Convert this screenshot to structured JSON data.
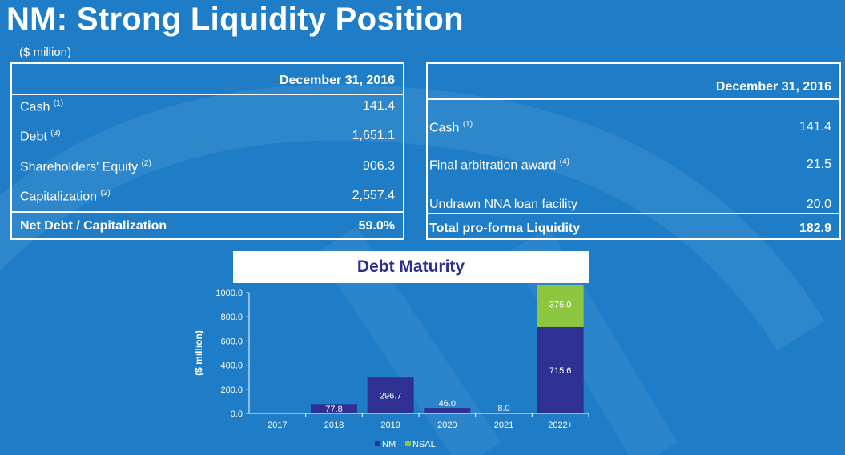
{
  "title": "NM: Strong Liquidity Position",
  "unit": "($ million)",
  "colors": {
    "background": "#1f7dc8",
    "nm": "#2e3192",
    "nsal": "#8dc63f",
    "chart_title": "#2e2e8e"
  },
  "capitalization_table": {
    "header": "December 31, 2016",
    "rows": [
      {
        "label": "Cash",
        "note": "(1)",
        "value": "141.4"
      },
      {
        "label": "Debt",
        "note": "(3)",
        "value": "1,651.1"
      },
      {
        "label": "Shareholders' Equity",
        "note": "(2)",
        "value": "906.3"
      },
      {
        "label": "Capitalization",
        "note": "(2)",
        "value": "2,557.4"
      }
    ],
    "total": {
      "label": "Net Debt / Capitalization",
      "value": "59.0%"
    }
  },
  "liquidity_table": {
    "header": "December 31, 2016",
    "rows": [
      {
        "label": "Cash",
        "note": "(1)",
        "value": "141.4"
      },
      {
        "label": "Final arbitration award",
        "note": "(4)",
        "value": "21.5"
      },
      {
        "label": "Undrawn NNA loan facility",
        "note": "",
        "value": "20.0"
      }
    ],
    "total": {
      "label": "Total pro-forma Liquidity",
      "value": "182.9"
    }
  },
  "chart_data": {
    "type": "bar",
    "stacked": true,
    "title": "Debt Maturity",
    "ylabel": "($ million)",
    "xlabel": "",
    "ylim": [
      0,
      1000
    ],
    "yticks": [
      "0.0",
      "200.0",
      "400.0",
      "600.0",
      "800.0",
      "1000.0"
    ],
    "categories": [
      "2017",
      "2018",
      "2019",
      "2020",
      "2021",
      "2022+"
    ],
    "series": [
      {
        "name": "NM",
        "values": [
          0,
          77.8,
          296.7,
          46.0,
          8.0,
          715.6
        ],
        "labels": [
          "",
          "77.8",
          "296.7",
          "46.0",
          "8.0",
          "715.6"
        ]
      },
      {
        "name": "NSAL",
        "values": [
          0,
          0,
          0,
          0,
          0,
          375.0
        ],
        "labels": [
          "",
          "",
          "",
          "",
          "",
          "375.0"
        ]
      }
    ],
    "legend": "bottom"
  }
}
